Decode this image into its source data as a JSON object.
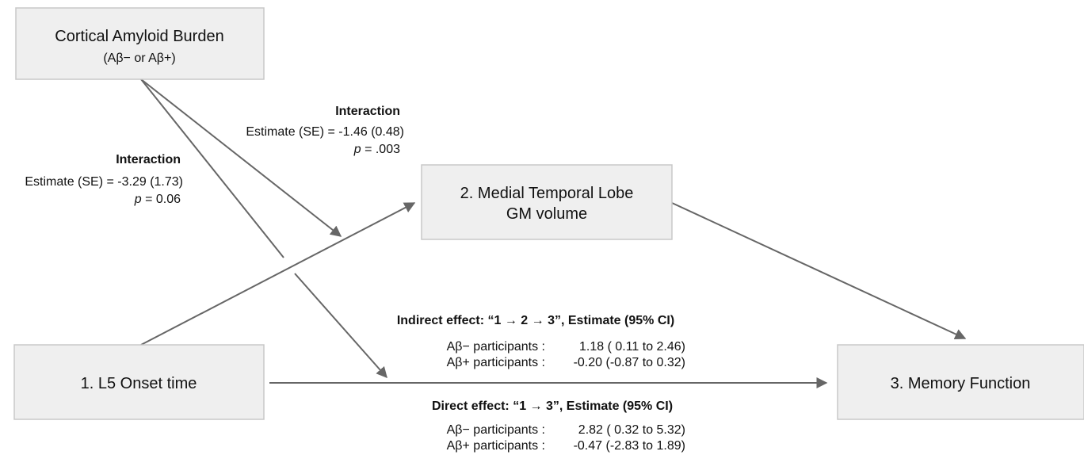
{
  "nodes": [
    {
      "label": "Cortical Amyloid Burden",
      "sublabel": "(Aβ− or Aβ+)"
    },
    {
      "label": "1. L5 Onset time"
    },
    {
      "label": "2. Medial Temporal Lobe",
      "sublabel": "GM volume"
    },
    {
      "label": "3. Memory Function"
    }
  ],
  "interactions": [
    {
      "title": "Interaction",
      "estimate": "Estimate (SE) = -1.46 (0.48)",
      "p": "p",
      "p_value": "= .003"
    },
    {
      "title": "Interaction",
      "estimate": "Estimate (SE) = -3.29 (1.73)",
      "p": "p",
      "p_value": "= 0.06"
    }
  ],
  "effects": [
    {
      "title": "Indirect effect: “1 → 2 → 3”, Estimate (95% CI)",
      "rows": [
        {
          "group": "Aβ− participants :",
          "value": "1.18 ( 0.11 to 2.46)"
        },
        {
          "group": "Aβ+ participants :",
          "value": "-0.20 (-0.87 to 0.32)"
        }
      ]
    },
    {
      "title": "Direct effect: “1 → 3”, Estimate (95% CI)",
      "rows": [
        {
          "group": "Aβ− participants :",
          "value": "2.82 ( 0.32 to 5.32)"
        },
        {
          "group": "Aβ+ participants :",
          "value": "-0.47 (-2.83 to 1.89)"
        }
      ]
    }
  ]
}
